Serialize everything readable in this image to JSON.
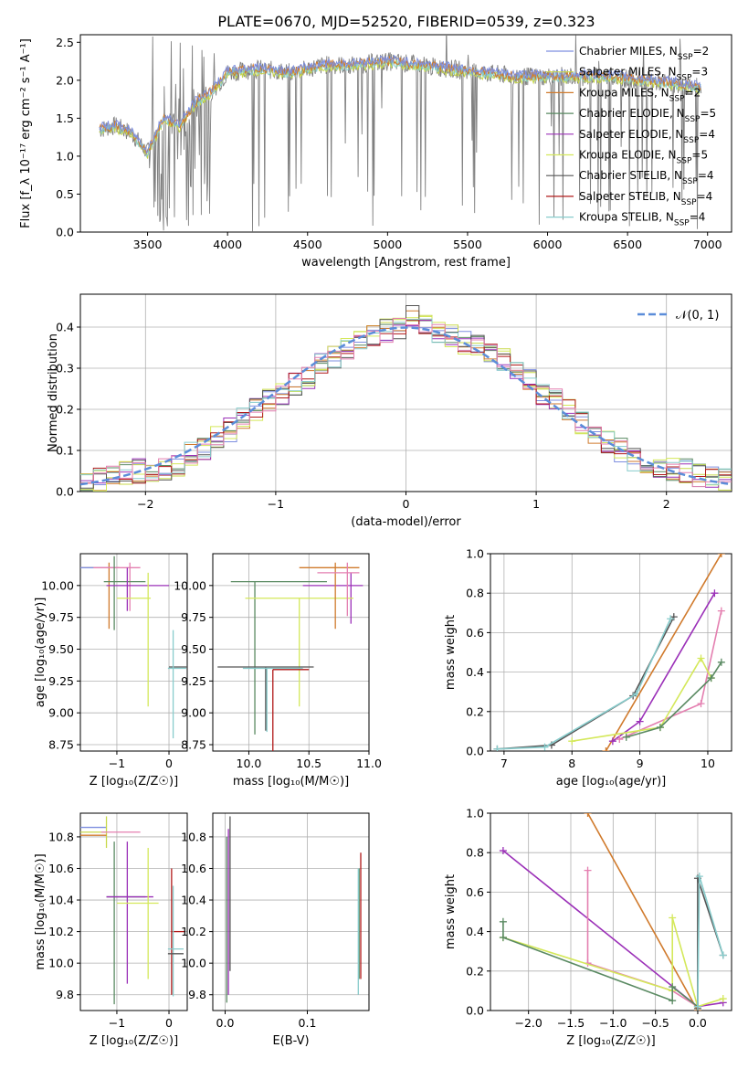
{
  "figure_title": "PLATE=0670, MJD=52520, FIBERID=0539, z=0.323",
  "colors": {
    "chabrier_miles": "#7e8fe0",
    "salpeter_miles": "#c8d94a",
    "kroupa_miles": "#d07a2c",
    "chabrier_elodie": "#5a8a62",
    "salpeter_elodie": "#9b30b8",
    "kroupa_elodie": "#d4e85a",
    "chabrier_stelib": "#555555",
    "salpeter_stelib": "#b01818",
    "kroupa_stelib": "#88cccc",
    "grid": "#b0b0b0",
    "gauss": "#5b8dd9",
    "pink": "#e47fb0"
  },
  "chart_data": [
    {
      "id": "spectrum",
      "type": "line",
      "xlabel": "wavelength [Angstrom, rest frame]",
      "ylabel": "Flux [f_λ 10⁻¹⁷ erg cm⁻² s⁻¹ A⁻¹]",
      "xlim": [
        3080,
        7150
      ],
      "ylim": [
        0,
        2.6
      ],
      "xticks": [
        3500,
        4000,
        4500,
        5000,
        5500,
        6000,
        6500,
        7000
      ],
      "yticks": [
        0.0,
        0.5,
        1.0,
        1.5,
        2.0,
        2.5
      ],
      "legend_position": "right",
      "legend": [
        {
          "label": "Chabrier MILES, N_SSP=2",
          "color": "#7e8fe0"
        },
        {
          "label": "Salpeter MILES, N_SSP=3",
          "color": "#c8d94a"
        },
        {
          "label": "Kroupa MILES, N_SSP=2",
          "color": "#d07a2c"
        },
        {
          "label": "Chabrier ELODIE, N_SSP=5",
          "color": "#5a8a62"
        },
        {
          "label": "Salpeter ELODIE, N_SSP=4",
          "color": "#9b30b8"
        },
        {
          "label": "Kroupa ELODIE, N_SSP=5",
          "color": "#d4e85a"
        },
        {
          "label": "Chabrier STELIB, N_SSP=4",
          "color": "#555555"
        },
        {
          "label": "Salpeter STELIB, N_SSP=4",
          "color": "#b01818"
        },
        {
          "label": "Kroupa STELIB, N_SSP=4",
          "color": "#88cccc"
        }
      ],
      "data_trend": {
        "x": [
          3200,
          3300,
          3400,
          3500,
          3600,
          3700,
          3800,
          3900,
          4000,
          4200,
          4400,
          4600,
          4800,
          5000,
          5200,
          5400,
          5600,
          5800,
          6000,
          6200,
          6400,
          6600,
          6800,
          6950
        ],
        "y": [
          1.35,
          1.4,
          1.3,
          1.05,
          1.5,
          1.4,
          1.7,
          1.85,
          2.1,
          2.15,
          2.1,
          2.2,
          2.2,
          2.25,
          2.2,
          2.15,
          2.1,
          2.05,
          2.05,
          2.05,
          2.05,
          2.0,
          1.95,
          1.9
        ]
      }
    },
    {
      "id": "residuals",
      "type": "line",
      "xlabel": "(data-model)/error",
      "ylabel": "Normed distribution",
      "xlim": [
        -2.5,
        2.5
      ],
      "ylim": [
        0,
        0.48
      ],
      "xticks": [
        -2,
        -1,
        0,
        1,
        2
      ],
      "yticks": [
        0.0,
        0.1,
        0.2,
        0.3,
        0.4
      ],
      "legend_position": "top-right",
      "gauss_label": "𝒩(0, 1)",
      "hist_bins": [
        -2.5,
        -2.4,
        -2.3,
        -2.2,
        -2.1,
        -2.0,
        -1.9,
        -1.8,
        -1.7,
        -1.6,
        -1.5,
        -1.4,
        -1.3,
        -1.2,
        -1.1,
        -1.0,
        -0.9,
        -0.8,
        -0.7,
        -0.6,
        -0.5,
        -0.4,
        -0.3,
        -0.2,
        -0.1,
        0.0,
        0.1,
        0.2,
        0.3,
        0.4,
        0.5,
        0.6,
        0.7,
        0.8,
        0.9,
        1.0,
        1.1,
        1.2,
        1.3,
        1.4,
        1.5,
        1.6,
        1.7,
        1.8,
        1.9,
        2.0,
        2.1,
        2.2,
        2.3,
        2.4,
        2.5
      ],
      "hist_values": [
        0.022,
        0.03,
        0.04,
        0.045,
        0.05,
        0.05,
        0.055,
        0.065,
        0.09,
        0.1,
        0.13,
        0.15,
        0.18,
        0.2,
        0.22,
        0.24,
        0.26,
        0.28,
        0.31,
        0.33,
        0.35,
        0.37,
        0.38,
        0.39,
        0.4,
        0.43,
        0.4,
        0.39,
        0.38,
        0.36,
        0.35,
        0.33,
        0.32,
        0.3,
        0.27,
        0.24,
        0.22,
        0.2,
        0.17,
        0.13,
        0.12,
        0.1,
        0.08,
        0.07,
        0.065,
        0.055,
        0.05,
        0.04,
        0.035,
        0.03
      ]
    },
    {
      "id": "age_vs_z",
      "type": "scatter",
      "xlabel": "Z [log₁₀(Z/Z☉)]",
      "ylabel": "age  [log₁₀(age/yr)]",
      "xlim": [
        -1.7,
        0.35
      ],
      "ylim": [
        8.7,
        10.25
      ],
      "xticks": [
        -1,
        0
      ],
      "yticks": [
        8.75,
        9.0,
        9.25,
        9.5,
        9.75,
        10.0
      ],
      "errorbars": [
        {
          "x": -1.15,
          "y": 10.14,
          "xerr": [
            0.55,
            0.2
          ],
          "yerr": [
            0.48,
            0.04
          ],
          "color": "#d07a2c"
        },
        {
          "x": -1.2,
          "y": 10.14,
          "xerr": [
            0.5,
            0.2
          ],
          "yerr": [
            0.0,
            0.0
          ],
          "color": "#7e8fe0"
        },
        {
          "x": -0.75,
          "y": 10.14,
          "xerr": [
            0.7,
            0.2
          ],
          "yerr": [
            0.34,
            0.04
          ],
          "color": "#e47fb0"
        },
        {
          "x": -1.05,
          "y": 10.03,
          "xerr": [
            0.2,
            0.6
          ],
          "yerr": [
            0.38,
            0.2
          ],
          "color": "#5a8a62"
        },
        {
          "x": -0.8,
          "y": 10.0,
          "xerr": [
            0.4,
            0.8
          ],
          "yerr": [
            0.2,
            0.14
          ],
          "color": "#9b30b8"
        },
        {
          "x": -0.4,
          "y": 9.9,
          "xerr": [
            0.6,
            0.05
          ],
          "yerr": [
            0.85,
            0.2
          ],
          "color": "#d4e85a"
        },
        {
          "x": 0.05,
          "y": 9.36,
          "xerr": [
            0.05,
            0.3
          ],
          "yerr": [
            0.0,
            0.0
          ],
          "color": "#555555"
        },
        {
          "x": 0.08,
          "y": 9.35,
          "xerr": [
            0.1,
            0.25
          ],
          "yerr": [
            0.55,
            0.3
          ],
          "color": "#88cccc"
        }
      ]
    },
    {
      "id": "age_vs_mass",
      "type": "scatter",
      "xlabel": "mass [log₁₀(M/M☉)]",
      "ylabel": "",
      "xlim": [
        9.7,
        11.0
      ],
      "ylim": [
        8.7,
        10.25
      ],
      "xticks": [
        10.0,
        10.5,
        11.0
      ],
      "yticks": [
        8.75,
        9.0,
        9.25,
        9.5,
        9.75,
        10.0
      ],
      "errorbars": [
        {
          "x": 10.05,
          "y": 10.03,
          "xerr": [
            0.2,
            0.6
          ],
          "yerr": [
            1.2,
            0.0
          ],
          "color": "#5a8a62"
        },
        {
          "x": 10.85,
          "y": 10.0,
          "xerr": [
            0.4,
            0.1
          ],
          "yerr": [
            0.3,
            0.1
          ],
          "color": "#9b30b8"
        },
        {
          "x": 10.42,
          "y": 9.9,
          "xerr": [
            0.45,
            0.45
          ],
          "yerr": [
            0.85,
            0.0
          ],
          "color": "#d4e85a"
        },
        {
          "x": 10.14,
          "y": 9.36,
          "xerr": [
            0.4,
            0.4
          ],
          "yerr": [
            0.5,
            0.0
          ],
          "color": "#555555"
        },
        {
          "x": 10.15,
          "y": 9.35,
          "xerr": [
            0.2,
            0.3
          ],
          "yerr": [
            0.5,
            0.0
          ],
          "color": "#88cccc"
        },
        {
          "x": 10.2,
          "y": 9.34,
          "xerr": [
            0.0,
            0.3
          ],
          "yerr": [
            1.15,
            0.0
          ],
          "color": "#b01818"
        },
        {
          "x": 10.72,
          "y": 10.14,
          "xerr": [
            0.3,
            0.2
          ],
          "yerr": [
            0.48,
            0.04
          ],
          "color": "#d07a2c"
        },
        {
          "x": 10.82,
          "y": 10.1,
          "xerr": [
            0.25,
            0.1
          ],
          "yerr": [
            0.34,
            0.08
          ],
          "color": "#e47fb0"
        }
      ]
    },
    {
      "id": "weight_vs_age",
      "type": "line",
      "xlabel": "age  [log₁₀(age/yr)]",
      "ylabel": "mass weight",
      "xlim": [
        6.8,
        10.35
      ],
      "ylim": [
        0,
        1.0
      ],
      "xticks": [
        7,
        8,
        9,
        10
      ],
      "yticks": [
        0.0,
        0.2,
        0.4,
        0.6,
        0.8,
        1.0
      ],
      "series": [
        {
          "x": [
            6.9,
            7.7,
            8.9,
            9.5
          ],
          "y": [
            0.01,
            0.03,
            0.28,
            0.68
          ],
          "color": "#555555"
        },
        {
          "x": [
            6.9,
            7.6,
            8.95,
            9.45
          ],
          "y": [
            0.01,
            0.02,
            0.29,
            0.67
          ],
          "color": "#88cccc"
        },
        {
          "x": [
            8.5,
            10.2
          ],
          "y": [
            0.0,
            1.0
          ],
          "color": "#d07a2c"
        },
        {
          "x": [
            8.6,
            9.0,
            10.1
          ],
          "y": [
            0.05,
            0.15,
            0.8
          ],
          "color": "#9b30b8"
        },
        {
          "x": [
            8.7,
            9.9,
            10.2
          ],
          "y": [
            0.06,
            0.24,
            0.71
          ],
          "color": "#e47fb0"
        },
        {
          "x": [
            8.0,
            9.3,
            9.9,
            10.05
          ],
          "y": [
            0.05,
            0.12,
            0.47,
            0.37
          ],
          "color": "#d4e85a"
        },
        {
          "x": [
            8.8,
            9.3,
            10.05,
            10.2
          ],
          "y": [
            0.07,
            0.12,
            0.37,
            0.45
          ],
          "color": "#5a8a62"
        }
      ]
    },
    {
      "id": "mass_vs_z",
      "type": "scatter",
      "xlabel": "Z [log₁₀(Z/Z☉)]",
      "ylabel": "mass [log₁₀(M/M☉)]",
      "xlim": [
        -1.7,
        0.35
      ],
      "ylim": [
        9.7,
        10.95
      ],
      "xticks": [
        -1,
        0
      ],
      "yticks": [
        9.8,
        10.0,
        10.2,
        10.4,
        10.6,
        10.8
      ],
      "errorbars": [
        {
          "x": -1.2,
          "y": 10.86,
          "xerr": [
            0.5,
            0.0
          ],
          "yerr": [
            0.0,
            0.0
          ],
          "color": "#7e8fe0"
        },
        {
          "x": -1.2,
          "y": 10.83,
          "xerr": [
            0.5,
            0.0
          ],
          "yerr": [
            0.1,
            0.1
          ],
          "color": "#c8d94a"
        },
        {
          "x": -0.75,
          "y": 10.83,
          "xerr": [
            0.55,
            0.2
          ],
          "yerr": [
            0.0,
            0.0
          ],
          "color": "#e47fb0"
        },
        {
          "x": -1.2,
          "y": 10.81,
          "xerr": [
            0.5,
            0.0
          ],
          "yerr": [
            0.0,
            0.0
          ],
          "color": "#d07a2c"
        },
        {
          "x": -1.05,
          "y": 10.42,
          "xerr": [
            0.15,
            0.6
          ],
          "yerr": [
            0.68,
            0.35
          ],
          "color": "#5a8a62"
        },
        {
          "x": -0.8,
          "y": 10.42,
          "xerr": [
            0.4,
            0.5
          ],
          "yerr": [
            0.55,
            0.35
          ],
          "color": "#9b30b8"
        },
        {
          "x": -0.4,
          "y": 10.38,
          "xerr": [
            0.6,
            0.2
          ],
          "yerr": [
            0.48,
            0.35
          ],
          "color": "#d4e85a"
        },
        {
          "x": 0.05,
          "y": 10.2,
          "xerr": [
            0.0,
            0.25
          ],
          "yerr": [
            0.4,
            0.4
          ],
          "color": "#b01818"
        },
        {
          "x": 0.08,
          "y": 10.09,
          "xerr": [
            0.1,
            0.2
          ],
          "yerr": [
            0.3,
            0.4
          ],
          "color": "#88cccc"
        },
        {
          "x": 0.08,
          "y": 10.06,
          "xerr": [
            0.1,
            0.2
          ],
          "yerr": [
            0.0,
            0.0
          ],
          "color": "#555555"
        }
      ]
    },
    {
      "id": "mass_vs_ebv",
      "type": "scatter",
      "xlabel": "E(B-V)",
      "ylabel": "",
      "xlim": [
        -0.015,
        0.175
      ],
      "ylim": [
        9.7,
        10.95
      ],
      "xticks": [
        0.0,
        0.1
      ],
      "yticks": [
        9.8,
        10.0,
        10.2,
        10.4,
        10.6,
        10.8
      ],
      "errorbars": [
        {
          "x": 0.002,
          "y": 10.3,
          "xerr": [
            0,
            0
          ],
          "yerr": [
            0.55,
            0.5
          ],
          "color": "#5a8a62"
        },
        {
          "x": 0.004,
          "y": 10.35,
          "xerr": [
            0,
            0
          ],
          "yerr": [
            0.55,
            0.5
          ],
          "color": "#9b30b8"
        },
        {
          "x": 0.006,
          "y": 10.4,
          "xerr": [
            0,
            0
          ],
          "yerr": [
            0.45,
            0.53
          ],
          "color": "#555555"
        },
        {
          "x": 0.163,
          "y": 10.3,
          "xerr": [
            0,
            0
          ],
          "yerr": [
            0.4,
            0.3
          ],
          "color": "#5a8a62"
        },
        {
          "x": 0.165,
          "y": 10.3,
          "xerr": [
            0,
            0
          ],
          "yerr": [
            0.4,
            0.4
          ],
          "color": "#b01818"
        },
        {
          "x": 0.162,
          "y": 10.2,
          "xerr": [
            0,
            0
          ],
          "yerr": [
            0.4,
            0.4
          ],
          "color": "#88cccc"
        }
      ]
    },
    {
      "id": "weight_vs_z",
      "type": "line",
      "xlabel": "Z [log₁₀(Z/Z☉)]",
      "ylabel": "mass weight",
      "xlim": [
        -2.45,
        0.4
      ],
      "ylim": [
        0,
        1.0
      ],
      "xticks": [
        -2.0,
        -1.5,
        -1.0,
        -0.5,
        0.0
      ],
      "yticks": [
        0.0,
        0.2,
        0.4,
        0.6,
        0.8,
        1.0
      ],
      "series": [
        {
          "x": [
            -1.3,
            0.0
          ],
          "y": [
            1.0,
            0.0
          ],
          "color": "#d07a2c"
        },
        {
          "x": [
            -2.3,
            0.0,
            0.3
          ],
          "y": [
            0.81,
            0.02,
            0.04
          ],
          "color": "#9b30b8"
        },
        {
          "x": [
            -1.3,
            -1.3,
            -0.3,
            0.0
          ],
          "y": [
            0.71,
            0.24,
            0.1,
            0.02
          ],
          "color": "#e47fb0"
        },
        {
          "x": [
            -2.3,
            -0.3,
            -0.3,
            0.0,
            0.3
          ],
          "y": [
            0.37,
            0.1,
            0.47,
            0.02,
            0.06
          ],
          "color": "#d4e85a"
        },
        {
          "x": [
            -2.3,
            -2.3,
            -0.3,
            -0.3,
            0.0
          ],
          "y": [
            0.45,
            0.37,
            0.05,
            0.12,
            0.02
          ],
          "color": "#5a8a62"
        },
        {
          "x": [
            0.0,
            0.0,
            0.3
          ],
          "y": [
            0.01,
            0.67,
            0.28
          ],
          "color": "#555555"
        },
        {
          "x": [
            0.0,
            0.02,
            0.3
          ],
          "y": [
            0.02,
            0.68,
            0.28
          ],
          "color": "#88cccc"
        }
      ]
    }
  ]
}
